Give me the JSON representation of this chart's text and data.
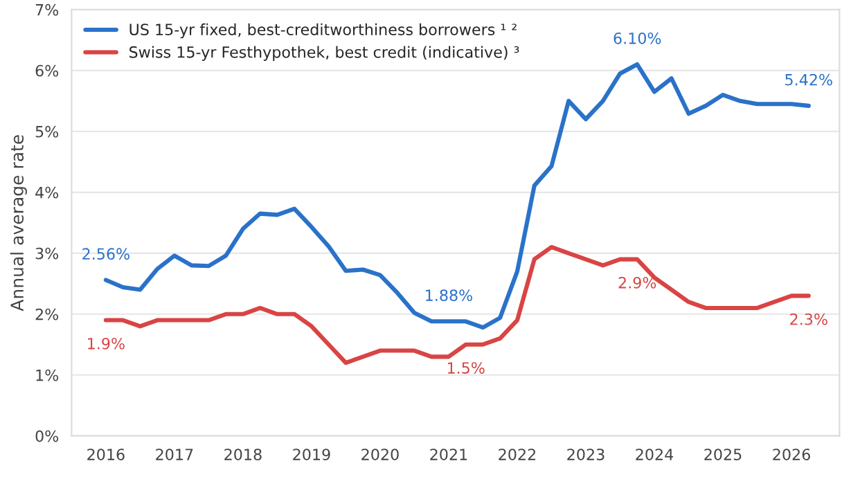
{
  "chart_data": {
    "type": "line",
    "ylabel": "Annual average rate",
    "x": [
      2016.0,
      2016.25,
      2016.5,
      2016.75,
      2017.0,
      2017.25,
      2017.5,
      2017.75,
      2018.0,
      2018.25,
      2018.5,
      2018.75,
      2019.0,
      2019.25,
      2019.5,
      2019.75,
      2020.0,
      2020.25,
      2020.5,
      2020.75,
      2021.0,
      2021.25,
      2021.5,
      2021.75,
      2022.0,
      2022.25,
      2022.5,
      2022.75,
      2023.0,
      2023.25,
      2023.5,
      2023.75,
      2024.0,
      2024.25,
      2024.5,
      2024.75,
      2025.0,
      2025.25,
      2025.5,
      2025.75,
      2026.0,
      2026.25
    ],
    "series": [
      {
        "name": "US 15-yr fixed, best-creditworthiness borrowers ¹ ²",
        "color": "#2a72c9",
        "values": [
          2.56,
          2.44,
          2.4,
          2.74,
          2.96,
          2.8,
          2.79,
          2.96,
          3.4,
          3.65,
          3.63,
          3.73,
          3.43,
          3.11,
          2.71,
          2.73,
          2.64,
          2.35,
          2.02,
          1.88,
          1.88,
          1.88,
          1.78,
          1.94,
          2.7,
          4.11,
          4.43,
          5.5,
          5.2,
          5.5,
          5.95,
          6.1,
          5.65,
          5.87,
          5.29,
          5.42,
          5.6,
          5.5,
          5.45,
          5.45,
          5.45,
          5.42
        ]
      },
      {
        "name": "Swiss 15-yr Festhypothek, best credit (indicative) ³",
        "color": "#d94444",
        "values": [
          1.9,
          1.9,
          1.8,
          1.9,
          1.9,
          1.9,
          1.9,
          2.0,
          2.0,
          2.1,
          2.0,
          2.0,
          1.8,
          1.5,
          1.2,
          1.3,
          1.4,
          1.4,
          1.4,
          1.3,
          1.3,
          1.5,
          1.5,
          1.6,
          1.9,
          2.9,
          3.1,
          3.0,
          2.9,
          2.8,
          2.9,
          2.9,
          2.6,
          2.4,
          2.2,
          2.1,
          2.1,
          2.1,
          2.1,
          2.2,
          2.3,
          2.3
        ]
      }
    ],
    "annotations": [
      {
        "text": "2.56%",
        "x": 2016.0,
        "y": 2.56
      },
      {
        "text": "1.88%",
        "x": 2021.0,
        "y": 1.88
      },
      {
        "text": "6.10%",
        "x": 2023.75,
        "y": 6.1
      },
      {
        "text": "5.42%",
        "x": 2026.25,
        "y": 5.42
      },
      {
        "text": "1.9%",
        "x": 2016.0,
        "y": 1.9
      },
      {
        "text": "1.5%",
        "x": 2021.25,
        "y": 1.5
      },
      {
        "text": "2.9%",
        "x": 2023.75,
        "y": 2.9
      },
      {
        "text": "2.3%",
        "x": 2026.25,
        "y": 2.3
      }
    ],
    "xlim": [
      2015.5,
      2026.7
    ],
    "xticks": [
      2016,
      2017,
      2018,
      2019,
      2020,
      2021,
      2022,
      2023,
      2024,
      2025,
      2026
    ],
    "ylim": [
      0,
      7
    ],
    "yticks": [
      {
        "value": 0,
        "label": "0%"
      },
      {
        "value": 1,
        "label": "1%"
      },
      {
        "value": 2,
        "label": "2%"
      },
      {
        "value": 3,
        "label": "3%"
      },
      {
        "value": 4,
        "label": "4%"
      },
      {
        "value": 5,
        "label": "5%"
      },
      {
        "value": 6,
        "label": "6%"
      },
      {
        "value": 7,
        "label": "7%"
      }
    ],
    "grid": "y",
    "legend": "top left",
    "line_style": "solid",
    "marker": "none"
  }
}
